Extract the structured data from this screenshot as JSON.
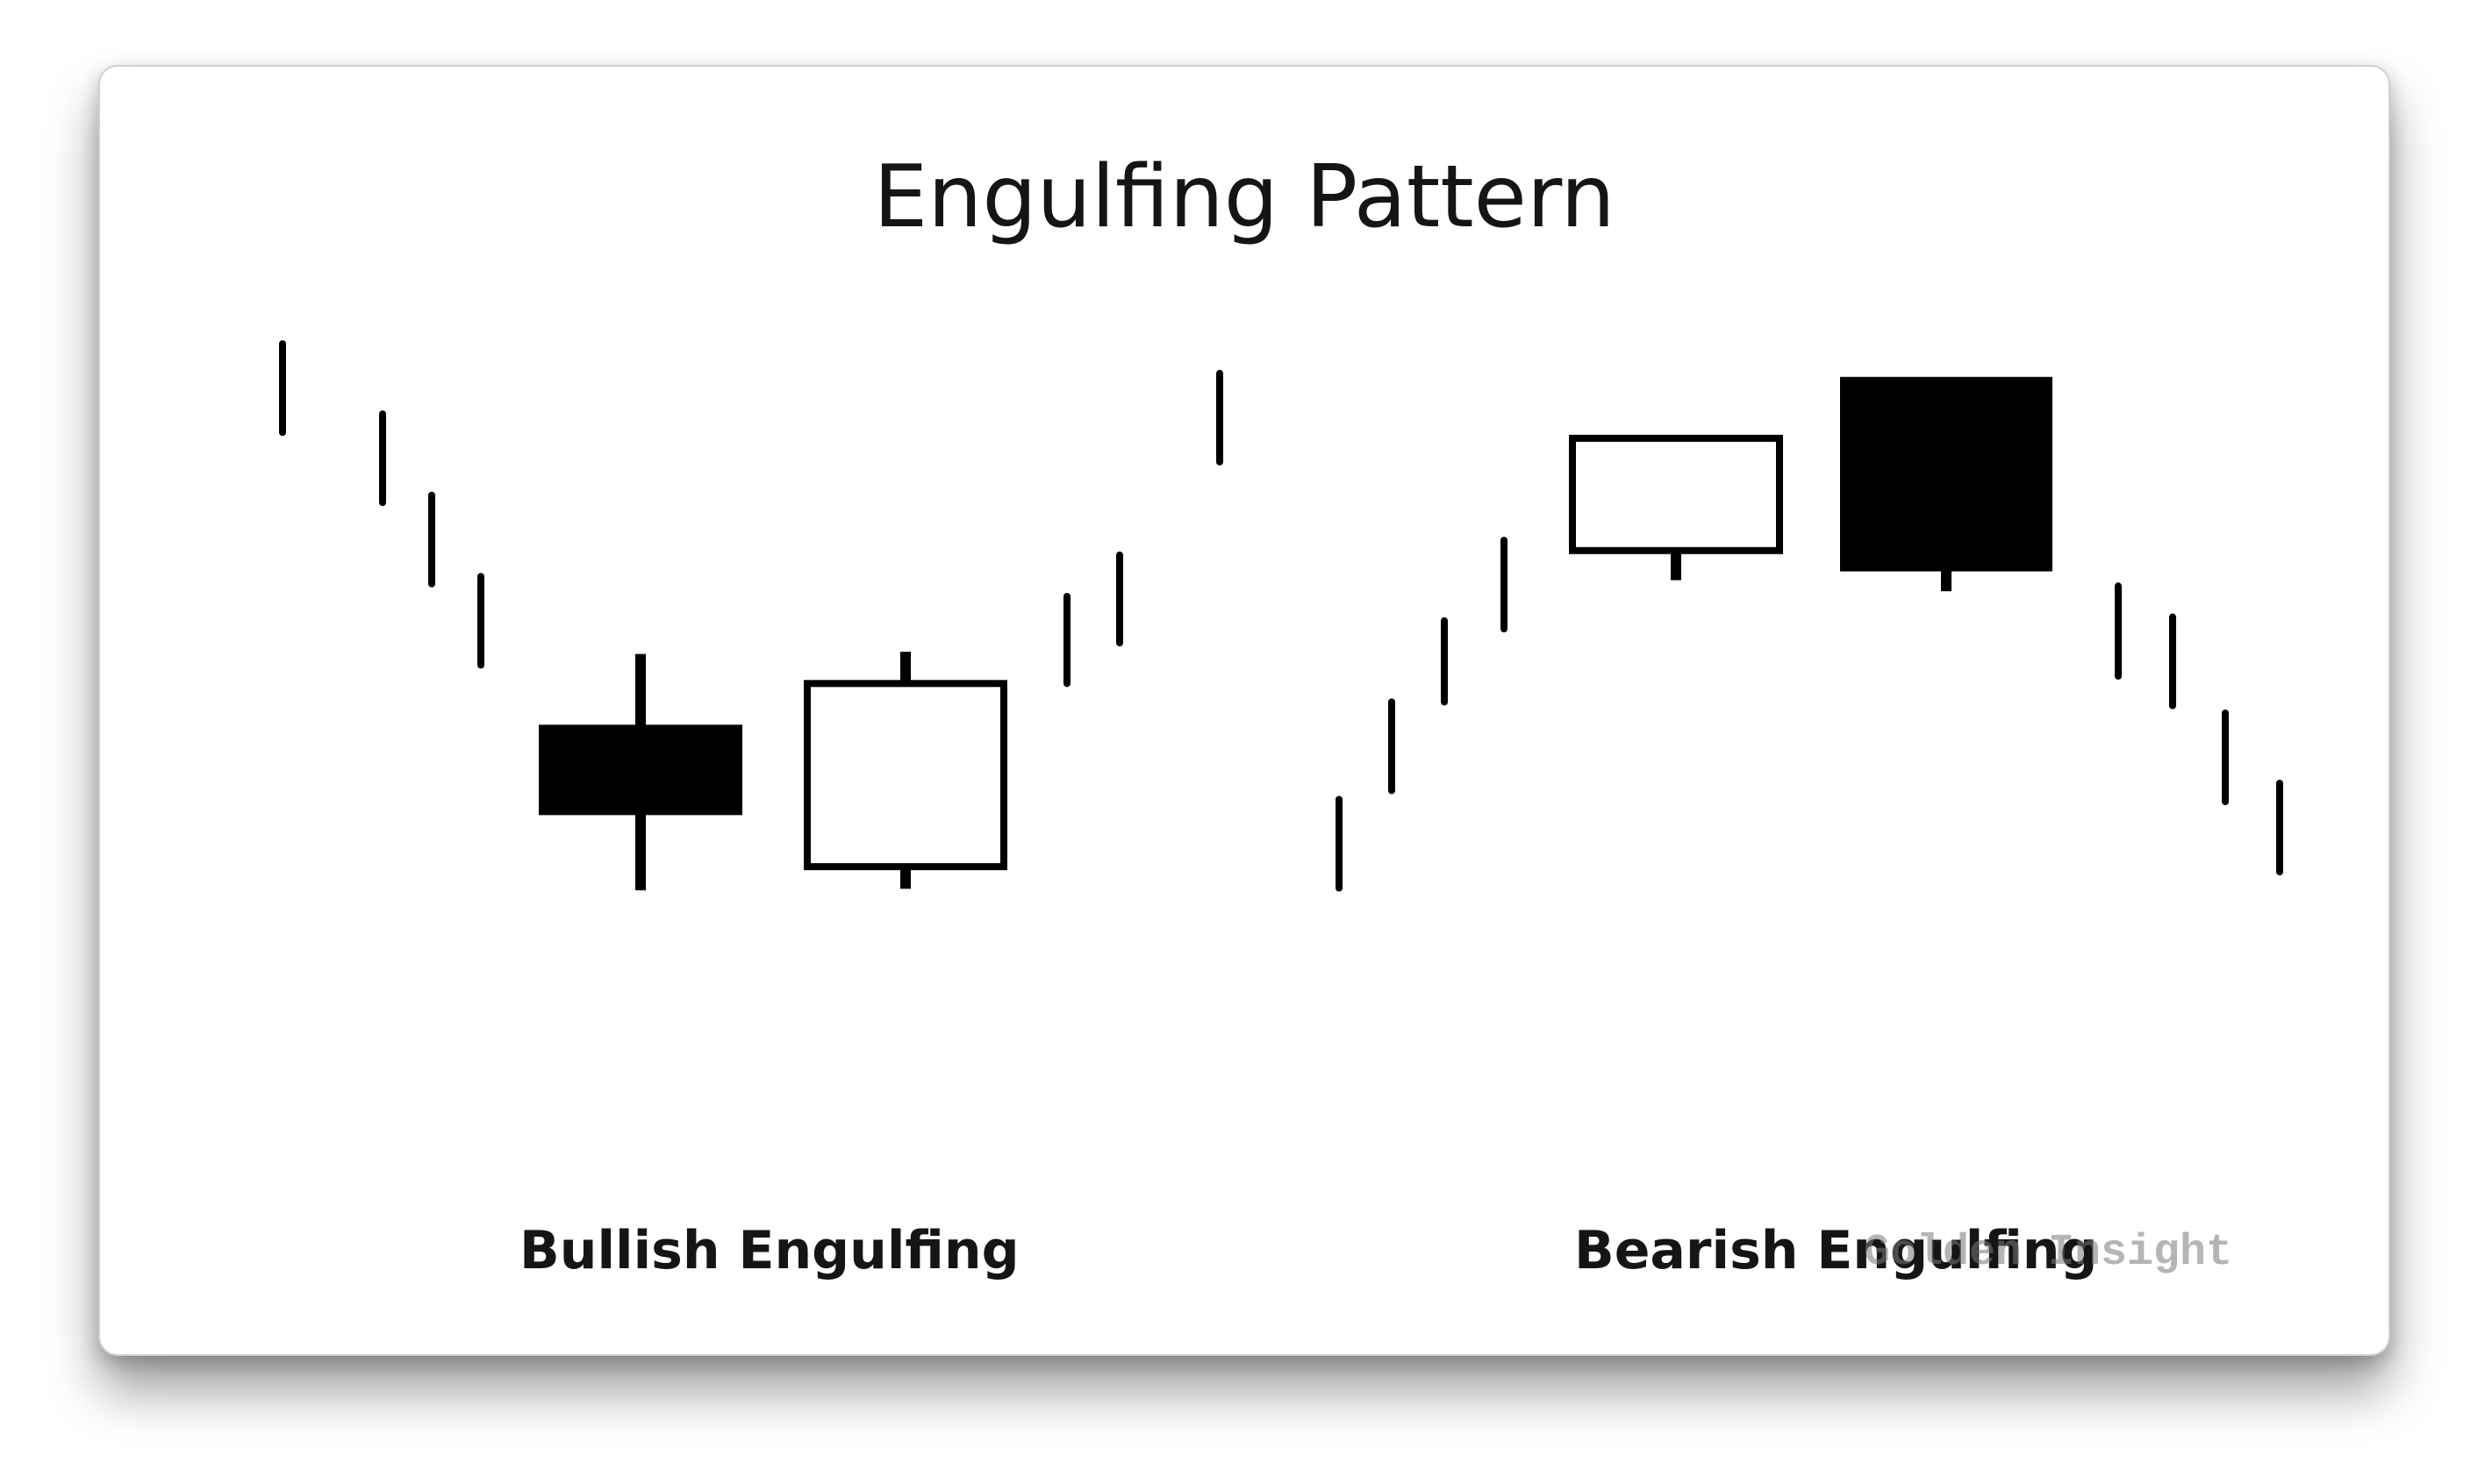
{
  "title": "Engulfing Pattern",
  "labels": {
    "bullish": "Bullish Engulfing",
    "bearish": "Bearish Engulfing"
  },
  "watermark": "Golden Insight",
  "colors": {
    "ink": "#000000",
    "card_background": "#ffffff",
    "watermark": "#8c8c8c"
  },
  "patterns": [
    {
      "name": "bullish-engulfing",
      "candles": [
        {
          "kind": "tick",
          "high": 100,
          "low": 88
        },
        {
          "kind": "tick",
          "high": 90.5,
          "low": 78.5
        },
        {
          "kind": "tick",
          "high": 79.5,
          "low": 67.5
        },
        {
          "kind": "tick",
          "high": 68.5,
          "low": 56.5
        },
        {
          "kind": "bearish",
          "high": 58,
          "open": 48.3,
          "close": 36.3,
          "low": 26
        },
        {
          "kind": "bullish",
          "high": 58.3,
          "open": 29.2,
          "close": 54,
          "low": 26.2
        },
        {
          "kind": "tick",
          "high": 65.8,
          "low": 54
        },
        {
          "kind": "tick",
          "high": 71.4,
          "low": 59.5
        },
        {
          "kind": "tick",
          "high": 96,
          "low": 84
        }
      ]
    },
    {
      "name": "bearish-engulfing",
      "candles": [
        {
          "kind": "tick",
          "high": 38.3,
          "low": 26.3
        },
        {
          "kind": "tick",
          "high": 51.5,
          "low": 39.5
        },
        {
          "kind": "tick",
          "high": 62.5,
          "low": 51.5
        },
        {
          "kind": "tick",
          "high": 73.4,
          "low": 61.4
        },
        {
          "kind": "bullish",
          "high": 68,
          "open": 72,
          "close": 87.2
        },
        {
          "kind": "bearish",
          "high": 95.4,
          "open": 95.4,
          "close": 69.3,
          "low": 66.5
        },
        {
          "kind": "tick",
          "high": 67.2,
          "low": 55
        },
        {
          "kind": "tick",
          "high": 63,
          "low": 51
        },
        {
          "kind": "tick",
          "high": 50,
          "low": 38
        },
        {
          "kind": "tick",
          "high": 40.5,
          "low": 28.5
        }
      ]
    }
  ]
}
